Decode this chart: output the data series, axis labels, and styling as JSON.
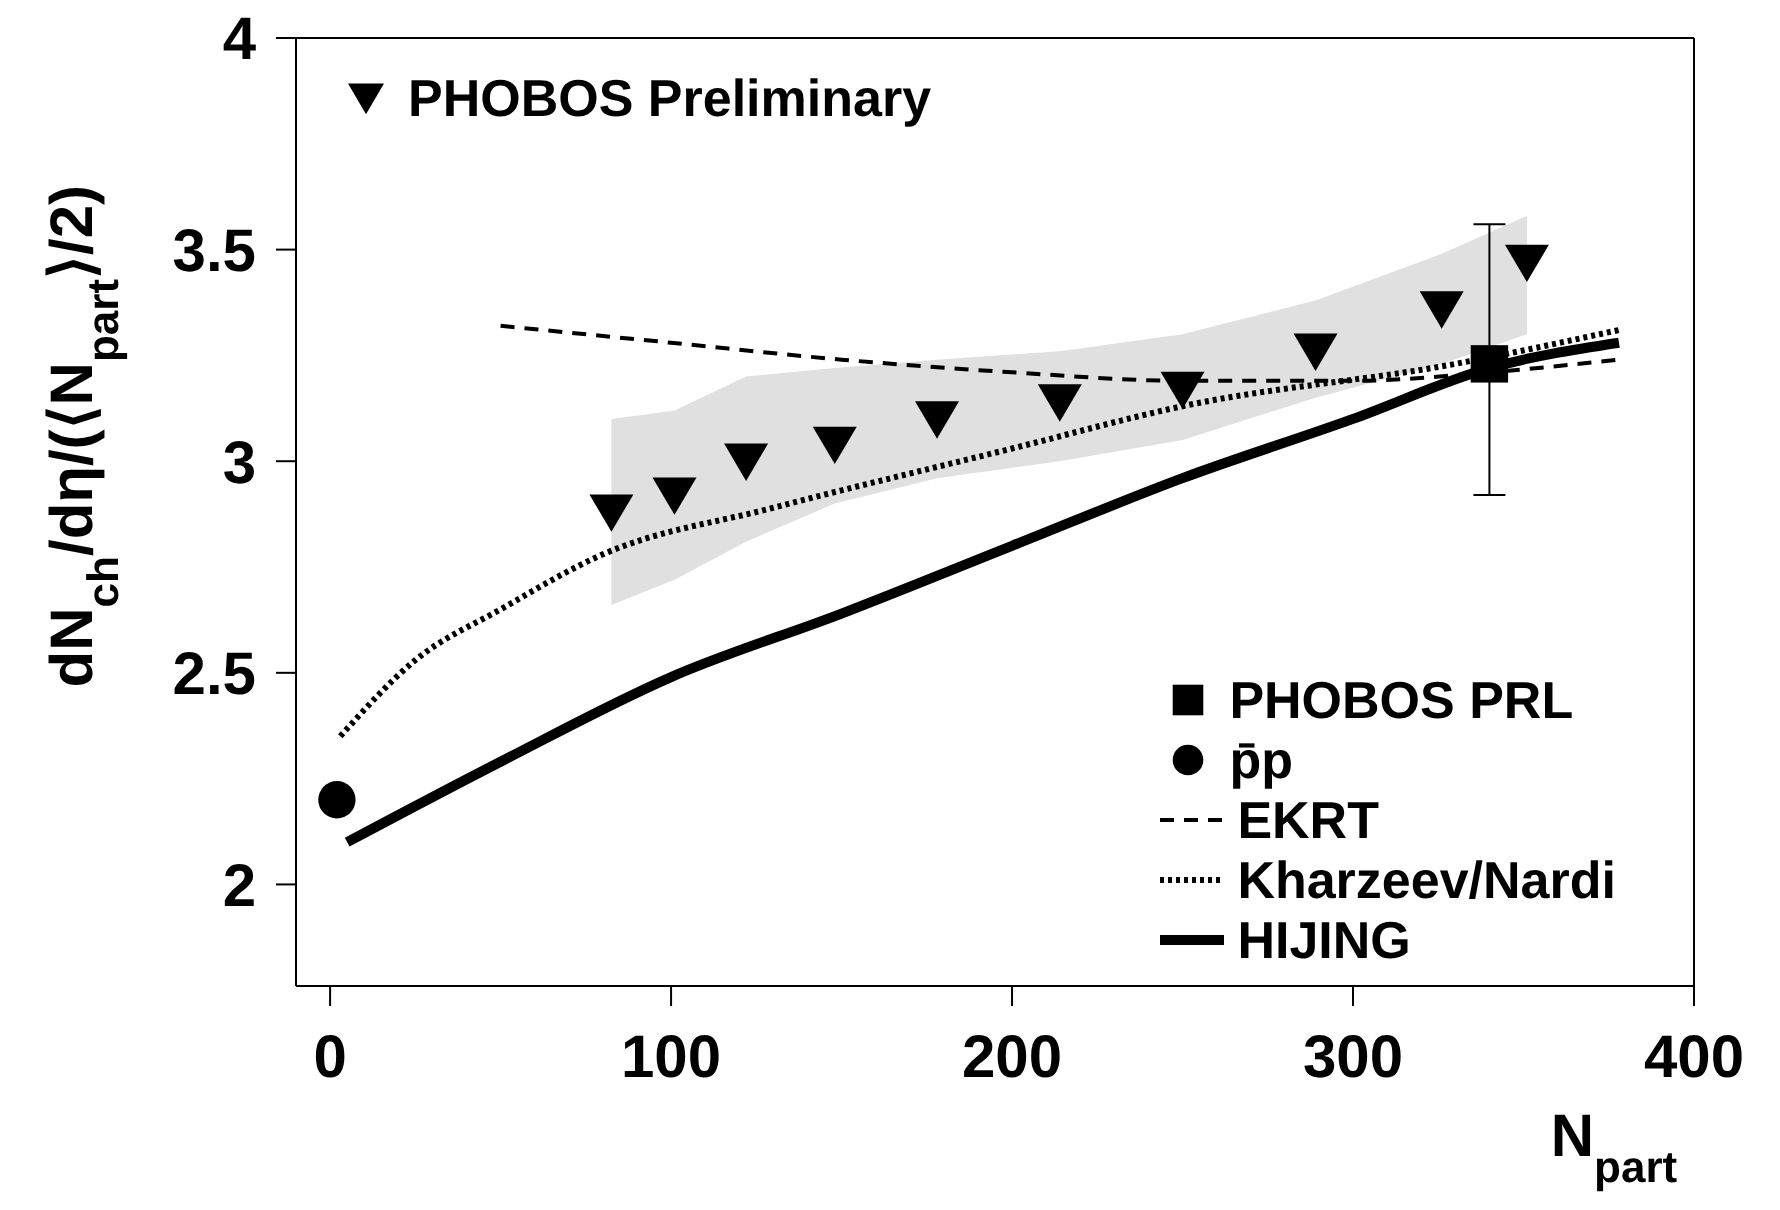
{
  "chart_data": {
    "type": "line",
    "xlabel": "N$_{part}$",
    "ylabel": "dN$_{ch}$/dη/(⟨N$_{part}$⟩/2)",
    "xlim": [
      -10,
      400
    ],
    "xticks": [
      0,
      100,
      200,
      300,
      400
    ],
    "ylim": [
      1.76,
      4
    ],
    "yticks": [
      2,
      2.5,
      3,
      3.5,
      4
    ],
    "grid": false,
    "legend": "bottom right",
    "series": [
      {
        "name": "PHOBOS Preliminary",
        "type": "scatter",
        "marker": "triangle",
        "color": "#000000",
        "x": [
          82.5,
          101,
          122,
          148,
          178,
          214,
          250,
          289,
          326,
          351
        ],
        "values": [
          2.88,
          2.92,
          3.0,
          3.04,
          3.1,
          3.14,
          3.17,
          3.26,
          3.36,
          3.47
        ],
        "lower": [
          2.66,
          2.72,
          2.81,
          2.9,
          2.96,
          3.0,
          3.05,
          3.15,
          3.23,
          3.3
        ],
        "upper": [
          3.1,
          3.12,
          3.2,
          3.22,
          3.24,
          3.26,
          3.3,
          3.38,
          3.49,
          3.58
        ]
      },
      {
        "name": "PHOBOS PRL",
        "type": "scatter",
        "marker": "square",
        "color": "#000000",
        "x": [
          340
        ],
        "values": [
          3.23
        ],
        "errors": [
          [
            2.92,
            3.56
          ]
        ]
      },
      {
        "name": "p̄p",
        "type": "scatter",
        "marker": "circle",
        "color": "#000000",
        "x": [
          2
        ],
        "values": [
          2.2
        ]
      },
      {
        "name": "EKRT",
        "line_style": "dashed",
        "marker": "none",
        "color": "#000000",
        "x": [
          50,
          100,
          150,
          200,
          250,
          300,
          340,
          378
        ],
        "values": [
          3.32,
          3.28,
          3.24,
          3.21,
          3.19,
          3.19,
          3.21,
          3.24
        ]
      },
      {
        "name": "Kharzeev/Nardi",
        "line_style": "dotted",
        "marker": "none",
        "color": "#000000",
        "x": [
          3,
          25,
          50,
          80,
          130,
          200,
          250,
          330,
          378
        ],
        "values": [
          2.35,
          2.53,
          2.65,
          2.78,
          2.89,
          3.03,
          3.13,
          3.23,
          3.31
        ]
      },
      {
        "name": "HIJING",
        "line_style": "solid",
        "marker": "none",
        "color": "#000000",
        "x": [
          5,
          50,
          100,
          150,
          200,
          250,
          300,
          340,
          378
        ],
        "values": [
          2.1,
          2.29,
          2.49,
          2.64,
          2.8,
          2.96,
          3.1,
          3.22,
          3.28
        ]
      }
    ]
  }
}
